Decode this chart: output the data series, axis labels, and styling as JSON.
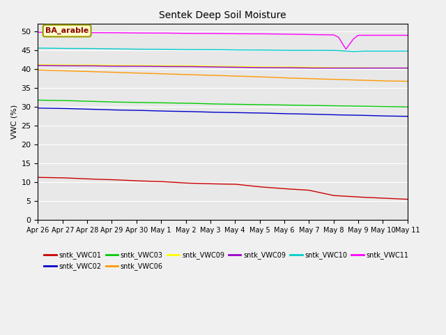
{
  "title": "Sentek Deep Soil Moisture",
  "ylabel": "VWC (%)",
  "annotation": "BA_arable",
  "ylim": [
    0,
    52
  ],
  "yticks": [
    0,
    5,
    10,
    15,
    20,
    25,
    30,
    35,
    40,
    45,
    50
  ],
  "series": {
    "sntk_VWC01": {
      "color": "#cc0000",
      "label": "sntk_VWC01",
      "pts_x": [
        0,
        1,
        2,
        3,
        4,
        5,
        6,
        7,
        8,
        9,
        10,
        11,
        12,
        13,
        14,
        15
      ],
      "pts_y": [
        11.3,
        11.2,
        10.9,
        10.7,
        10.4,
        10.2,
        9.8,
        9.6,
        9.5,
        8.8,
        8.3,
        7.9,
        6.5,
        6.1,
        5.8,
        5.5
      ]
    },
    "sntk_VWC02": {
      "color": "#0000cc",
      "label": "sntk_VWC02",
      "pts_x": [
        0,
        1,
        2,
        3,
        4,
        5,
        6,
        7,
        8,
        9,
        10,
        11,
        12,
        13,
        14,
        15
      ],
      "pts_y": [
        29.7,
        29.6,
        29.4,
        29.2,
        29.1,
        28.9,
        28.8,
        28.6,
        28.5,
        28.4,
        28.2,
        28.1,
        27.9,
        27.8,
        27.6,
        27.5
      ]
    },
    "sntk_VWC03": {
      "color": "#00cc00",
      "label": "sntk_VWC03",
      "pts_x": [
        0,
        1,
        2,
        3,
        4,
        5,
        6,
        7,
        8,
        9,
        10,
        11,
        12,
        13,
        14,
        15
      ],
      "pts_y": [
        31.8,
        31.7,
        31.5,
        31.3,
        31.2,
        31.1,
        31.0,
        30.8,
        30.7,
        30.6,
        30.5,
        30.4,
        30.3,
        30.2,
        30.1,
        30.0
      ]
    },
    "sntk_VWC06": {
      "color": "#ff9900",
      "label": "sntk_VWC06",
      "pts_x": [
        0,
        1,
        2,
        3,
        4,
        5,
        6,
        7,
        8,
        9,
        10,
        11,
        12,
        13,
        14,
        15
      ],
      "pts_y": [
        39.8,
        39.6,
        39.4,
        39.2,
        39.0,
        38.8,
        38.6,
        38.4,
        38.2,
        38.0,
        37.7,
        37.5,
        37.3,
        37.1,
        36.9,
        36.8
      ]
    },
    "sntk_VWC09y": {
      "color": "#ffff00",
      "label": "sntk_VWC09",
      "pts_x": [
        0,
        1,
        2,
        3,
        4,
        5,
        6,
        7,
        8,
        9,
        10,
        11,
        12,
        13,
        14,
        15
      ],
      "pts_y": [
        41.2,
        41.1,
        41.1,
        41.0,
        41.0,
        40.9,
        40.9,
        40.8,
        40.7,
        40.6,
        40.6,
        40.5,
        40.4,
        40.4,
        40.3,
        40.3
      ]
    },
    "sntk_VWC09p": {
      "color": "#9900cc",
      "label": "sntk_VWC09",
      "pts_x": [
        0,
        1,
        2,
        3,
        4,
        5,
        6,
        7,
        8,
        9,
        10,
        11,
        12,
        13,
        14,
        15
      ],
      "pts_y": [
        41.0,
        40.9,
        40.9,
        40.8,
        40.8,
        40.7,
        40.7,
        40.6,
        40.5,
        40.4,
        40.4,
        40.3,
        40.3,
        40.3,
        40.3,
        40.3
      ]
    },
    "sntk_VWC10": {
      "color": "#00cccc",
      "label": "sntk_VWC10",
      "pts_x": [
        0,
        1,
        2,
        3,
        4,
        5,
        6,
        7,
        8,
        9,
        10,
        11,
        12,
        12.3,
        12.8,
        13.2,
        13.5,
        14,
        15
      ],
      "pts_y": [
        45.6,
        45.5,
        45.5,
        45.4,
        45.3,
        45.3,
        45.2,
        45.2,
        45.1,
        45.1,
        45.0,
        45.0,
        45.0,
        44.9,
        44.7,
        44.8,
        44.8,
        44.8,
        44.8
      ]
    },
    "sntk_VWC11": {
      "color": "#ff00ff",
      "label": "sntk_VWC11",
      "pts_x": [
        0,
        1,
        2,
        3,
        4,
        5,
        6,
        7,
        8,
        9,
        10,
        11,
        12,
        12.2,
        12.5,
        12.8,
        13,
        13.5,
        14,
        15
      ],
      "pts_y": [
        49.8,
        49.8,
        49.7,
        49.7,
        49.6,
        49.6,
        49.5,
        49.5,
        49.4,
        49.4,
        49.3,
        49.2,
        49.1,
        48.5,
        45.3,
        48.0,
        49.0,
        49.0,
        49.0,
        49.0
      ]
    }
  },
  "x_labels": [
    "Apr 26",
    "Apr 27",
    "Apr 28",
    "Apr 29",
    "Apr 30",
    "May 1",
    "May 2",
    "May 3",
    "May 4",
    "May 5",
    "May 6",
    "May 7",
    "May 8",
    "May 9",
    "May 10",
    "May 11"
  ],
  "legend_row1": [
    {
      "label": "sntk_VWC01",
      "color": "#cc0000"
    },
    {
      "label": "sntk_VWC02",
      "color": "#0000cc"
    },
    {
      "label": "sntk_VWC03",
      "color": "#00cc00"
    },
    {
      "label": "sntk_VWC06",
      "color": "#ff9900"
    },
    {
      "label": "sntk_VWC09",
      "color": "#ffff00"
    },
    {
      "label": "sntk_VWC09",
      "color": "#9900cc"
    }
  ],
  "legend_row2": [
    {
      "label": "sntk_VWC10",
      "color": "#00cccc"
    },
    {
      "label": "sntk_VWC11",
      "color": "#ff00ff"
    }
  ],
  "bg_color": "#e8e8e8",
  "grid_color": "#ffffff",
  "fig_bg": "#f0f0f0"
}
